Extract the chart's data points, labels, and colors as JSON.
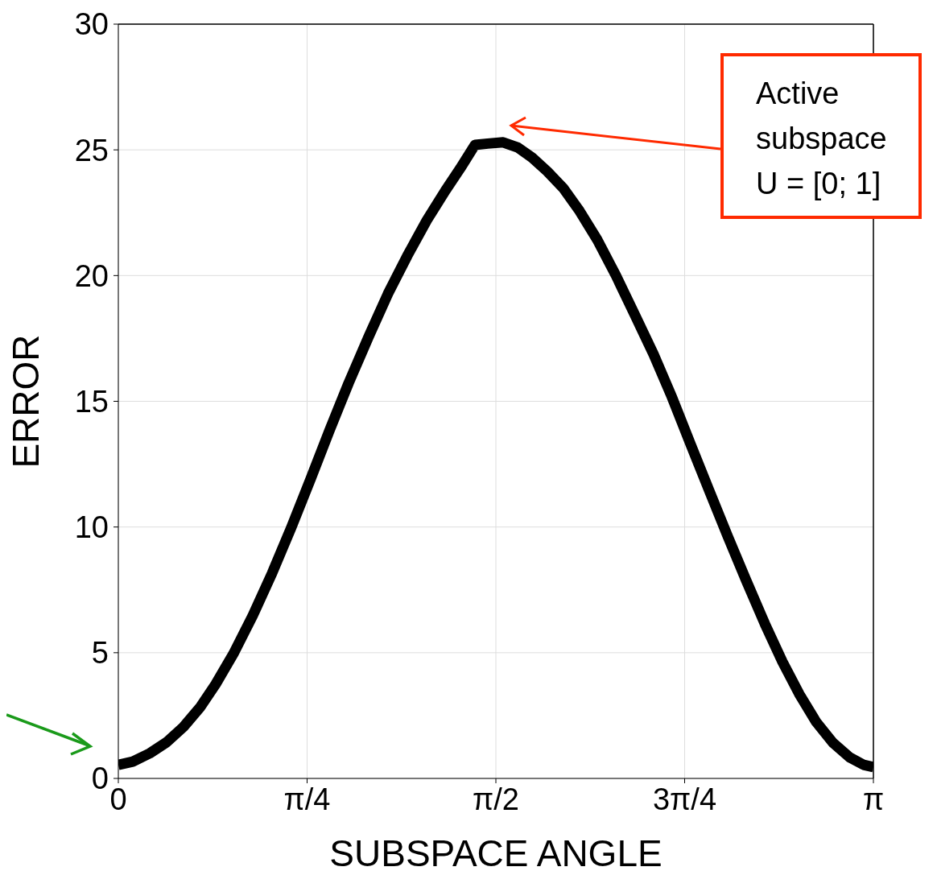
{
  "chart_data": {
    "type": "line",
    "xlabel": "SUBSPACE ANGLE",
    "ylabel": "ERROR",
    "xlim": [
      0,
      3.1416
    ],
    "xticks": [
      0,
      {
        "value": 0.7854,
        "label": "π/4"
      },
      {
        "value": 1.5708,
        "label": "π/2"
      },
      {
        "value": 2.3562,
        "label": "3π/4"
      },
      {
        "value": 3.1416,
        "label": "π"
      }
    ],
    "ylim": [
      0,
      30
    ],
    "yticks": [
      0,
      5,
      10,
      15,
      20,
      25,
      30
    ],
    "grid": true,
    "legend": false,
    "marker": "none",
    "line_style": "solid",
    "x": [
      0,
      0.06,
      0.131,
      0.201,
      0.271,
      0.342,
      0.405,
      0.479,
      0.559,
      0.64,
      0.72,
      0.8,
      0.878,
      0.958,
      1.042,
      1.122,
      1.202,
      1.283,
      1.36,
      1.423,
      1.484,
      1.537,
      1.601,
      1.661,
      1.722,
      1.785,
      1.852,
      1.919,
      1.993,
      2.07,
      2.147,
      2.227,
      2.304,
      2.381,
      2.458,
      2.535,
      2.612,
      2.69,
      2.763,
      2.833,
      2.904,
      2.974,
      3.044,
      3.101,
      3.1416
    ],
    "series": [
      {
        "color": "#000000",
        "values": [
          0.54,
          0.67,
          1.0,
          1.44,
          2.05,
          2.85,
          3.75,
          4.96,
          6.47,
          8.17,
          9.99,
          11.91,
          13.83,
          15.72,
          17.58,
          19.28,
          20.78,
          22.19,
          23.37,
          24.27,
          25.2,
          25.25,
          25.3,
          25.1,
          24.69,
          24.14,
          23.47,
          22.57,
          21.42,
          20.01,
          18.48,
          16.87,
          15.15,
          13.29,
          11.46,
          9.64,
          7.88,
          6.15,
          4.64,
          3.36,
          2.24,
          1.41,
          0.83,
          0.54,
          0.45
        ]
      }
    ],
    "annotations": [
      "Active subspace U = [0; 1]"
    ]
  }
}
